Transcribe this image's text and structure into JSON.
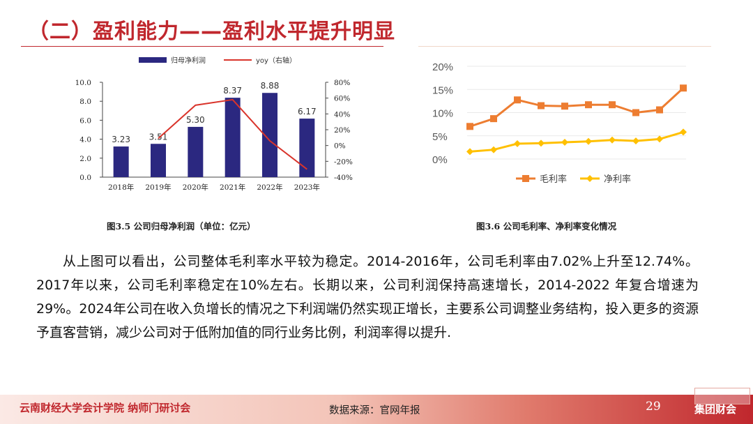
{
  "page": {
    "title": "（二）盈利能力——盈利水平提升明显",
    "caption_left": "图3.5 公司归母净利润（单位：亿元）",
    "caption_right": "图3.6 公司毛利率、净利率变化情况",
    "body": "从上图可以看出，公司整体毛利率水平较为稳定。2014-2016年，公司毛利率由7.02%上升至12.74%。2017年以来，公司毛利率稳定在10%左右。长期以来，公司利润保持高速增长，2014-2022 年复合增速为 29%。2024年公司在收入负增长的情况之下利润端仍然实现正增长，主要系公司调整业务结构，投入更多的资源予直客营销，减少公司对于低附加值的同行业务比例，利润率得以提升.",
    "footer_left": "云南财经大学会计学院 纳师门研讨会",
    "footer_source": "数据来源：官网年报",
    "footer_page": "29",
    "footer_brand": "集团财会"
  },
  "colors": {
    "title": "#c0272d",
    "bar": "#2b2880",
    "yoy_line": "#d9342b",
    "gross_line": "#ed7d31",
    "net_line": "#ffc000"
  },
  "chart_data": [
    {
      "type": "bar",
      "categories": [
        "2018年",
        "2019年",
        "2020年",
        "2021年",
        "2022年",
        "2023年"
      ],
      "series": [
        {
          "name": "归母净利润",
          "type": "bar",
          "axis": "left",
          "values": [
            3.23,
            3.51,
            5.3,
            8.37,
            8.88,
            6.17
          ],
          "labels": [
            "3.23",
            "3.51",
            "5.30",
            "8.37",
            "8.88",
            "6.17"
          ]
        },
        {
          "name": "yoy（右轴）",
          "type": "line",
          "axis": "right",
          "values": [
            null,
            9,
            51,
            58,
            6,
            -30
          ]
        }
      ],
      "y_left": {
        "min": 0,
        "max": 10,
        "ticks": [
          "0.0",
          "2.0",
          "4.0",
          "6.0",
          "8.0",
          "10.0"
        ]
      },
      "y_right": {
        "min": -40,
        "max": 80,
        "ticks": [
          "-40%",
          "-20%",
          "0%",
          "20%",
          "40%",
          "60%",
          "80%"
        ]
      },
      "legend_position": "top"
    },
    {
      "type": "line",
      "x": [
        "",
        "",
        "",
        "",
        "",
        "",
        "",
        "",
        "",
        ""
      ],
      "series": [
        {
          "name": "毛利率",
          "values": [
            7.02,
            8.7,
            12.74,
            11.5,
            11.4,
            11.7,
            11.7,
            10.0,
            10.6,
            15.3
          ]
        },
        {
          "name": "净利率",
          "values": [
            1.6,
            2.0,
            3.3,
            3.4,
            3.6,
            3.8,
            4.1,
            3.9,
            4.3,
            5.8
          ]
        }
      ],
      "y": {
        "min": 0,
        "max": 20,
        "ticks": [
          "0%",
          "5%",
          "10%",
          "15%",
          "20%"
        ]
      },
      "legend_position": "bottom"
    }
  ]
}
